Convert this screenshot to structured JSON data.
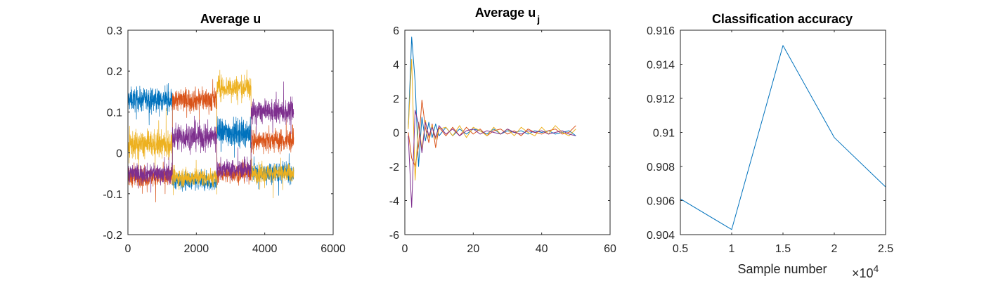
{
  "chart_data": [
    {
      "type": "line",
      "title": "Average u",
      "xlim": [
        0,
        6000
      ],
      "ylim": [
        -0.2,
        0.3
      ],
      "xticks": [
        0,
        2000,
        4000,
        6000
      ],
      "xtick_labels": [
        "0",
        "2000",
        "4000",
        "6000"
      ],
      "yticks": [
        -0.2,
        -0.1,
        0,
        0.1,
        0.2,
        0.3
      ],
      "ytick_labels": [
        "-0.2",
        "-0.1",
        "0",
        "0.1",
        "0.2",
        "0.3"
      ],
      "grid": false,
      "series": [
        {
          "color": "#0072BD",
          "segments": [
            {
              "x": [
                0,
                1300
              ],
              "mean": 0.13,
              "noise": 0.05
            },
            {
              "x": [
                1300,
                2600
              ],
              "mean": -0.07,
              "noise": 0.04
            },
            {
              "x": [
                2600,
                3600
              ],
              "mean": 0.05,
              "noise": 0.06
            },
            {
              "x": [
                3600,
                4850
              ],
              "mean": -0.05,
              "noise": 0.04
            }
          ]
        },
        {
          "color": "#D95319",
          "segments": [
            {
              "x": [
                0,
                1300
              ],
              "mean": -0.06,
              "noise": 0.04
            },
            {
              "x": [
                1300,
                2600
              ],
              "mean": 0.13,
              "noise": 0.05
            },
            {
              "x": [
                2600,
                3600
              ],
              "mean": -0.05,
              "noise": 0.04
            },
            {
              "x": [
                3600,
                4850
              ],
              "mean": 0.03,
              "noise": 0.05
            }
          ]
        },
        {
          "color": "#EDB120",
          "segments": [
            {
              "x": [
                0,
                1300
              ],
              "mean": 0.02,
              "noise": 0.06
            },
            {
              "x": [
                1300,
                2600
              ],
              "mean": -0.06,
              "noise": 0.04
            },
            {
              "x": [
                2600,
                3600
              ],
              "mean": 0.16,
              "noise": 0.05
            },
            {
              "x": [
                3600,
                4850
              ],
              "mean": -0.05,
              "noise": 0.04
            }
          ]
        },
        {
          "color": "#7E2F8E",
          "segments": [
            {
              "x": [
                0,
                1300
              ],
              "mean": -0.05,
              "noise": 0.04
            },
            {
              "x": [
                1300,
                2600
              ],
              "mean": 0.04,
              "noise": 0.06
            },
            {
              "x": [
                2600,
                3600
              ],
              "mean": -0.04,
              "noise": 0.04
            },
            {
              "x": [
                3600,
                4850
              ],
              "mean": 0.1,
              "noise": 0.05
            }
          ]
        }
      ]
    },
    {
      "type": "line",
      "title": "Average u",
      "title_subscript": "j",
      "xlim": [
        0,
        60
      ],
      "ylim": [
        -6,
        6
      ],
      "xticks": [
        0,
        20,
        40,
        60
      ],
      "xtick_labels": [
        "0",
        "20",
        "40",
        "60"
      ],
      "yticks": [
        -6,
        -4,
        -2,
        0,
        2,
        4,
        6
      ],
      "ytick_labels": [
        "-6",
        "-4",
        "-2",
        "0",
        "2",
        "4",
        "6"
      ],
      "grid": false,
      "series": [
        {
          "color": "#0072BD",
          "x": [
            1,
            2,
            3,
            4,
            5,
            6,
            7,
            8,
            9,
            10,
            12,
            14,
            16,
            18,
            20,
            22,
            24,
            26,
            28,
            30,
            32,
            34,
            36,
            38,
            40,
            42,
            44,
            46,
            48,
            50
          ],
          "y": [
            0.3,
            5.6,
            3.0,
            -2.0,
            0.9,
            -0.5,
            0.6,
            -0.3,
            0.5,
            -0.2,
            0.3,
            -0.2,
            0.2,
            -0.1,
            0.2,
            0.1,
            -0.1,
            0.2,
            -0.1,
            0.1,
            0.0,
            0.1,
            -0.1,
            0.1,
            0.0,
            0.1,
            -0.1,
            0.0,
            0.1,
            -0.2
          ]
        },
        {
          "color": "#D95319",
          "x": [
            1,
            2,
            3,
            4,
            5,
            6,
            7,
            8,
            9,
            10,
            12,
            14,
            16,
            18,
            20,
            22,
            24,
            26,
            28,
            30,
            32,
            34,
            36,
            38,
            40,
            42,
            44,
            46,
            48,
            50
          ],
          "y": [
            0.0,
            -1.5,
            -2.0,
            -0.8,
            1.9,
            0.3,
            -0.6,
            0.5,
            -0.9,
            0.3,
            -0.2,
            0.3,
            -0.2,
            0.3,
            -0.1,
            0.2,
            -0.2,
            0.1,
            0.2,
            -0.1,
            0.1,
            -0.2,
            0.2,
            0.0,
            -0.1,
            0.1,
            0.2,
            -0.1,
            0.0,
            0.4
          ]
        },
        {
          "color": "#EDB120",
          "x": [
            1,
            2,
            3,
            4,
            5,
            6,
            7,
            8,
            9,
            10,
            12,
            14,
            16,
            18,
            20,
            22,
            24,
            26,
            28,
            30,
            32,
            34,
            36,
            38,
            40,
            42,
            44,
            46,
            48,
            50
          ],
          "y": [
            0.2,
            4.3,
            -2.8,
            0.6,
            -1.0,
            0.7,
            -0.3,
            0.4,
            -0.4,
            0.2,
            0.3,
            -0.2,
            0.4,
            -0.3,
            0.3,
            0.1,
            -0.2,
            0.3,
            -0.1,
            0.2,
            -0.2,
            0.3,
            0.0,
            -0.2,
            0.3,
            -0.1,
            0.4,
            0.0,
            -0.2,
            0.2
          ]
        },
        {
          "color": "#7E2F8E",
          "x": [
            1,
            2,
            3,
            4,
            5,
            6,
            7,
            8,
            9,
            10,
            12,
            14,
            16,
            18,
            20,
            22,
            24,
            26,
            28,
            30,
            32,
            34,
            36,
            38,
            40,
            42,
            44,
            46,
            48,
            50
          ],
          "y": [
            -0.2,
            -4.4,
            1.3,
            0.5,
            -1.2,
            0.6,
            -0.2,
            0.3,
            -0.3,
            0.4,
            -0.1,
            0.2,
            -0.2,
            0.1,
            0.2,
            -0.1,
            0.1,
            0.0,
            -0.1,
            0.2,
            0.0,
            -0.1,
            0.1,
            0.0,
            0.1,
            -0.1,
            0.0,
            0.1,
            -0.1,
            -0.2
          ]
        }
      ]
    },
    {
      "type": "line",
      "title": "Classification accuracy",
      "xlabel": "Sample number",
      "x_multiplier_text": "×10",
      "x_multiplier_exp": "4",
      "xlim": [
        5000,
        25000
      ],
      "ylim": [
        0.904,
        0.916
      ],
      "xticks": [
        5000,
        10000,
        15000,
        20000,
        25000
      ],
      "xtick_labels": [
        "0.5",
        "1",
        "1.5",
        "2",
        "2.5"
      ],
      "yticks": [
        0.904,
        0.906,
        0.908,
        0.91,
        0.912,
        0.914,
        0.916
      ],
      "ytick_labels": [
        "0.904",
        "0.906",
        "0.908",
        "0.91",
        "0.912",
        "0.914",
        "0.916"
      ],
      "grid": false,
      "series": [
        {
          "color": "#0072BD",
          "x": [
            5000,
            10000,
            15000,
            20000,
            25000
          ],
          "y": [
            0.9061,
            0.9043,
            0.9151,
            0.9097,
            0.9068
          ]
        }
      ]
    }
  ]
}
